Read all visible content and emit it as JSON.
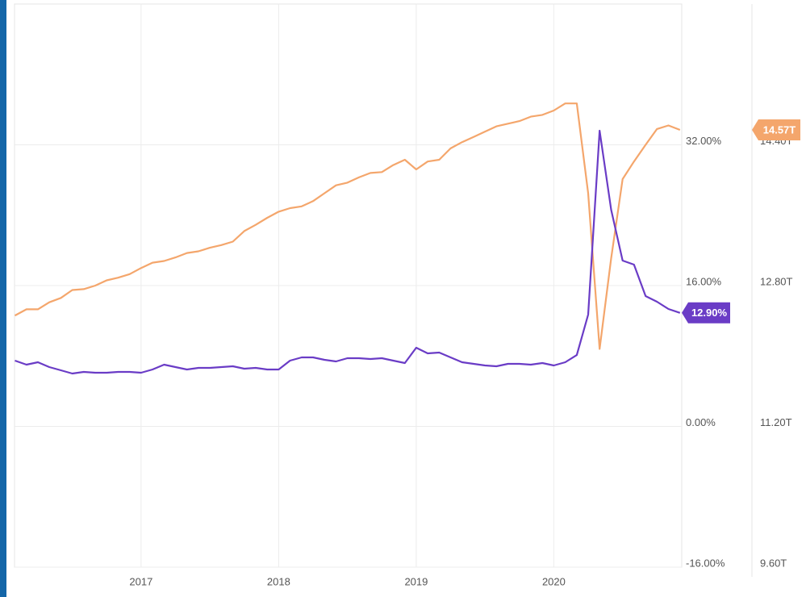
{
  "chart_data": {
    "type": "line",
    "x": [
      2016.083,
      2016.167,
      2016.25,
      2016.333,
      2016.417,
      2016.5,
      2016.583,
      2016.667,
      2016.75,
      2016.833,
      2016.917,
      2017,
      2017.083,
      2017.167,
      2017.25,
      2017.333,
      2017.417,
      2017.5,
      2017.583,
      2017.667,
      2017.75,
      2017.833,
      2017.917,
      2018,
      2018.083,
      2018.167,
      2018.25,
      2018.333,
      2018.417,
      2018.5,
      2018.583,
      2018.667,
      2018.75,
      2018.833,
      2018.917,
      2019,
      2019.083,
      2019.167,
      2019.25,
      2019.333,
      2019.417,
      2019.5,
      2019.583,
      2019.667,
      2019.75,
      2019.833,
      2019.917,
      2020,
      2020.083,
      2020.167,
      2020.25,
      2020.333,
      2020.417,
      2020.5,
      2020.583,
      2020.667,
      2020.75,
      2020.833,
      2020.917
    ],
    "xlim": [
      2016.08,
      2020.93
    ],
    "xticks": [
      2017,
      2018,
      2019,
      2020
    ],
    "ylim": [
      -16,
      48
    ],
    "yticks": [
      {
        "value": -16,
        "label": "-16.00%"
      },
      {
        "value": 0,
        "label": "0.00%"
      },
      {
        "value": 16,
        "label": "16.00%"
      },
      {
        "value": 32,
        "label": "32.00%"
      }
    ],
    "y2lim": [
      9.6,
      16.0
    ],
    "y2ticks": [
      {
        "value": 9.6,
        "label": "9.60T"
      },
      {
        "value": 11.2,
        "label": "11.20T"
      },
      {
        "value": 12.8,
        "label": "12.80T"
      },
      {
        "value": 14.4,
        "label": "14.40T"
      }
    ],
    "grid": true,
    "series": [
      {
        "color": "#f4a66c",
        "axis": "y2",
        "values": [
          12.46,
          12.53,
          12.53,
          12.61,
          12.66,
          12.75,
          12.76,
          12.8,
          12.86,
          12.89,
          12.93,
          13.0,
          13.06,
          13.08,
          13.12,
          13.17,
          13.19,
          13.23,
          13.26,
          13.3,
          13.42,
          13.49,
          13.57,
          13.64,
          13.68,
          13.7,
          13.76,
          13.85,
          13.94,
          13.97,
          14.03,
          14.08,
          14.09,
          14.17,
          14.23,
          14.12,
          14.21,
          14.23,
          14.36,
          14.43,
          14.49,
          14.55,
          14.61,
          14.64,
          14.67,
          14.72,
          14.74,
          14.79,
          14.87,
          14.87,
          13.85,
          12.08,
          13.11,
          14.01,
          14.21,
          14.4,
          14.58,
          14.62,
          14.57
        ],
        "value_labels": [
          null,
          null,
          null,
          null,
          null,
          null,
          null,
          null,
          null,
          null,
          null,
          null,
          null,
          null,
          null,
          null,
          null,
          null,
          null,
          null,
          null,
          null,
          null,
          null,
          null,
          null,
          null,
          null,
          null,
          null,
          null,
          null,
          null,
          null,
          null,
          null,
          null,
          null,
          null,
          null,
          null,
          null,
          null,
          null,
          null,
          null,
          null,
          null,
          null,
          null,
          null,
          null,
          null,
          null,
          null,
          null,
          null,
          null,
          "14.57T"
        ]
      },
      {
        "color": "#6a3cc6",
        "values": [
          7.47,
          7.01,
          7.29,
          6.74,
          6.37,
          6.01,
          6.19,
          6.1,
          6.1,
          6.19,
          6.19,
          6.1,
          6.46,
          7.01,
          6.74,
          6.46,
          6.65,
          6.65,
          6.74,
          6.83,
          6.56,
          6.65,
          6.46,
          6.46,
          7.47,
          7.84,
          7.84,
          7.56,
          7.38,
          7.75,
          7.75,
          7.66,
          7.75,
          7.47,
          7.2,
          8.94,
          8.3,
          8.39,
          7.84,
          7.29,
          7.11,
          6.92,
          6.83,
          7.11,
          7.11,
          7.01,
          7.2,
          6.92,
          7.29,
          8.11,
          12.7,
          33.6,
          24.62,
          18.84,
          18.38,
          14.81,
          14.17,
          13.34,
          12.9
        ],
        "value_labels": [
          null,
          null,
          null,
          null,
          null,
          null,
          null,
          null,
          null,
          null,
          null,
          null,
          null,
          null,
          null,
          null,
          null,
          null,
          null,
          null,
          null,
          null,
          null,
          null,
          null,
          null,
          null,
          null,
          null,
          null,
          null,
          null,
          null,
          null,
          null,
          null,
          null,
          null,
          null,
          null,
          null,
          null,
          null,
          null,
          null,
          null,
          null,
          null,
          null,
          null,
          null,
          null,
          null,
          null,
          null,
          null,
          null,
          null,
          "12.90%"
        ]
      }
    ]
  }
}
